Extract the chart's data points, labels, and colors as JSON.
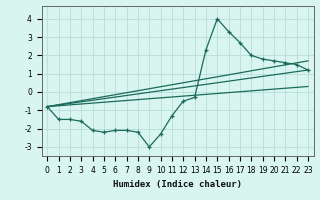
{
  "xlabel": "Humidex (Indice chaleur)",
  "background_color": "#d8f5f0",
  "grid_color": "#b8ddd6",
  "line_color": "#1a6b5a",
  "xlim": [
    -0.5,
    23.5
  ],
  "ylim": [
    -3.5,
    4.7
  ],
  "xticks": [
    0,
    1,
    2,
    3,
    4,
    5,
    6,
    7,
    8,
    9,
    10,
    11,
    12,
    13,
    14,
    15,
    16,
    17,
    18,
    19,
    20,
    21,
    22,
    23
  ],
  "yticks": [
    -3,
    -2,
    -1,
    0,
    1,
    2,
    3,
    4
  ],
  "series1_x": [
    0,
    1,
    2,
    3,
    4,
    5,
    6,
    7,
    8,
    9,
    10,
    11,
    12,
    13,
    14,
    15,
    16,
    17,
    18,
    19,
    20,
    21,
    22,
    23
  ],
  "series1_y": [
    -0.8,
    -1.5,
    -1.5,
    -1.6,
    -2.1,
    -2.2,
    -2.1,
    -2.1,
    -2.2,
    -3.0,
    -2.3,
    -1.3,
    -0.5,
    -0.3,
    2.3,
    4.0,
    3.3,
    2.7,
    2.0,
    1.8,
    1.7,
    1.6,
    1.5,
    1.2
  ],
  "series2_x": [
    0,
    23
  ],
  "series2_y": [
    -0.8,
    1.7
  ],
  "series3_x": [
    0,
    23
  ],
  "series3_y": [
    -0.8,
    1.2
  ],
  "series4_x": [
    0,
    23
  ],
  "series4_y": [
    -0.8,
    0.3
  ],
  "xlabel_fontsize": 6.5,
  "tick_fontsize": 5.5
}
